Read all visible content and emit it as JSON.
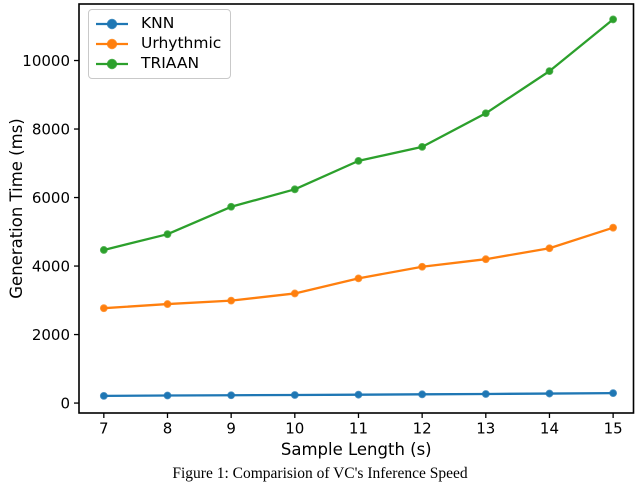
{
  "figure": {
    "caption": "Figure 1: Comparision of VC's Inference Speed"
  },
  "chart_data": {
    "type": "line",
    "title": "",
    "xlabel": "Sample Length (s)",
    "ylabel": "Generation Time (ms)",
    "x": [
      7,
      8,
      9,
      10,
      11,
      12,
      13,
      14,
      15
    ],
    "x_tick_labels": [
      "7",
      "8",
      "9",
      "10",
      "11",
      "12",
      "13",
      "14",
      "15"
    ],
    "y_ticks": [
      0,
      2000,
      4000,
      6000,
      8000,
      10000
    ],
    "y_tick_labels": [
      "0",
      "2000",
      "4000",
      "6000",
      "8000",
      "10000"
    ],
    "xlim": [
      6.61,
      15.32
    ],
    "ylim": [
      -290,
      11650
    ],
    "grid": false,
    "marker": "circle",
    "legend_position": "upper left",
    "series": [
      {
        "name": "KNN",
        "color": "#1f77b4",
        "values": [
          210,
          220,
          228,
          236,
          245,
          255,
          265,
          278,
          290
        ]
      },
      {
        "name": "Urhythmic",
        "color": "#ff7f0e",
        "values": [
          2770,
          2890,
          2990,
          3200,
          3640,
          3980,
          4200,
          4520,
          5120
        ]
      },
      {
        "name": "TRIAAN",
        "color": "#2ca02c",
        "values": [
          4470,
          4930,
          5730,
          6240,
          7070,
          7480,
          8460,
          9690,
          11200
        ]
      }
    ],
    "colors": {
      "axis": "#000000",
      "background": "#ffffff"
    }
  }
}
